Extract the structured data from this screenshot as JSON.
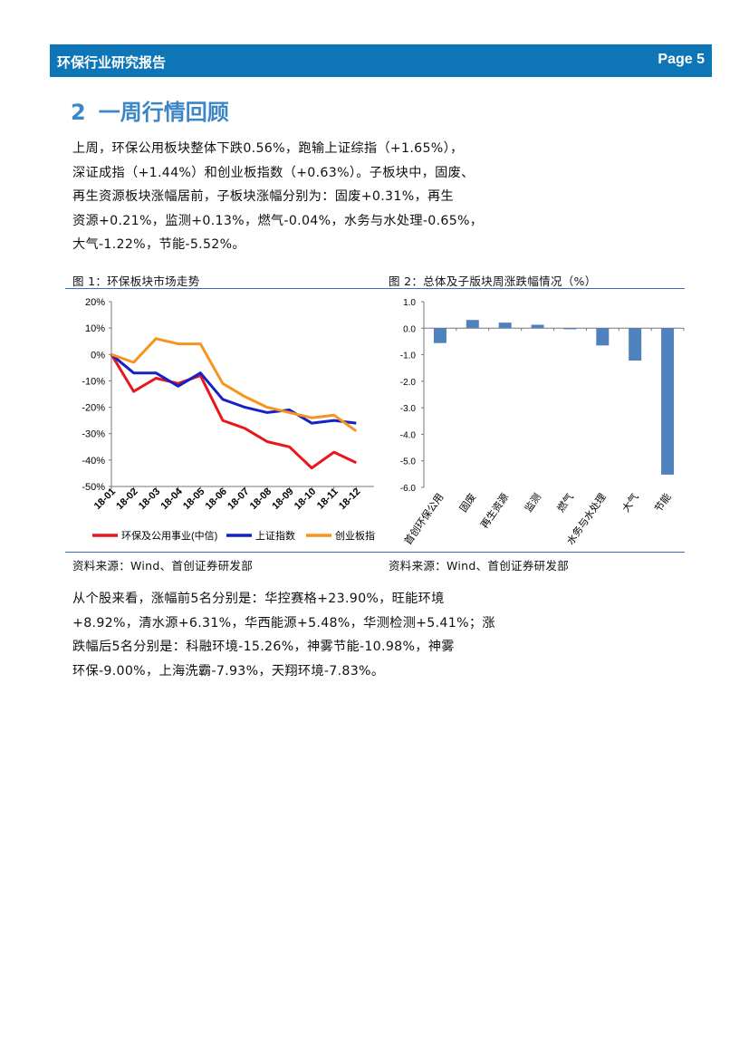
{
  "header": {
    "title": "环保行业研究报告",
    "page": "Page 5"
  },
  "section": {
    "number": "2",
    "title": "一周行情回顾"
  },
  "para1": [
    "上周，环保公用板块整体下跌0.56%，跑输上证综指（+1.65%），",
    "深证成指（+1.44%）和创业板指数（+0.63%）。子板块中，固废、",
    "再生资源板块涨幅居前，子板块涨幅分别为：固废+0.31%，再生",
    "资源+0.21%，监测+0.13%，燃气-0.04%，水务与水处理-0.65%，",
    "大气-1.22%，节能-5.52%。"
  ],
  "fig1": {
    "caption": "图 1：环保板块市场走势",
    "source": "资料来源：Wind、首创证券研发部"
  },
  "fig2": {
    "caption": "图 2：总体及子版块周涨跌幅情况（%）",
    "source": "资料来源：Wind、首创证券研发部"
  },
  "para2": [
    "从个股来看，涨幅前5名分别是：华控赛格+23.90%，旺能环境",
    "+8.92%，清水源+6.31%，华西能源+5.48%，华测检测+5.41%；涨",
    "跌幅后5名分别是：科融环境-15.26%，神雾节能-10.98%，神雾",
    "环保-9.00%，上海洗霸-7.93%，天翔环境-7.83%。"
  ],
  "chart_data": [
    {
      "type": "line",
      "x": [
        "18-01",
        "18-02",
        "18-03",
        "18-04",
        "18-05",
        "18-06",
        "18-07",
        "18-08",
        "18-09",
        "18-10",
        "18-11",
        "18-12"
      ],
      "ylim": [
        -50,
        20
      ],
      "yticks": [
        "20%",
        "10%",
        "0%",
        "-10%",
        "-20%",
        "-30%",
        "-40%",
        "-50%"
      ],
      "series": [
        {
          "name": "环保及公用事业(中信)",
          "color": "#e8171b",
          "values": [
            0,
            -14,
            -9,
            -11,
            -8,
            -25,
            -28,
            -33,
            -35,
            -43,
            -37,
            -41
          ]
        },
        {
          "name": "上证指数",
          "color": "#1420c8",
          "values": [
            0,
            -7,
            -7,
            -12,
            -7,
            -17,
            -20,
            -22,
            -21,
            -26,
            -25,
            -26
          ]
        },
        {
          "name": "创业板指",
          "color": "#f7941d",
          "values": [
            0,
            -3,
            6,
            4,
            4,
            -11,
            -16,
            -20,
            -22,
            -24,
            -23,
            -29
          ]
        }
      ]
    },
    {
      "type": "bar",
      "categories": [
        "首创环保公用",
        "固废",
        "再生资源",
        "监测",
        "燃气",
        "水务与水处理",
        "大气",
        "节能"
      ],
      "values": [
        -0.56,
        0.31,
        0.21,
        0.13,
        -0.04,
        -0.65,
        -1.22,
        -5.52
      ],
      "ylim": [
        -6,
        1
      ],
      "yticks": [
        "1.0",
        "0.0",
        "-1.0",
        "-2.0",
        "-3.0",
        "-4.0",
        "-5.0",
        "-6.0"
      ],
      "color": "#4f81bd"
    }
  ]
}
